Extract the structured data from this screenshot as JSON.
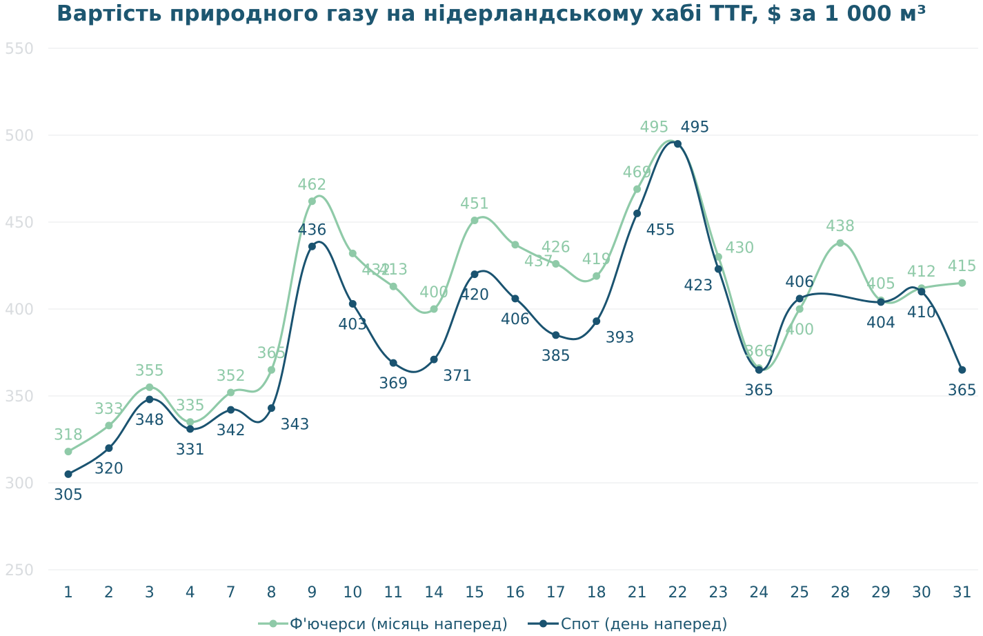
{
  "chart_data": {
    "type": "line",
    "title": "Вартість природного газу на нідерландському хабі TTF, $ за 1 000 м³",
    "xlabel": "",
    "ylabel": "",
    "ylim": [
      250,
      550
    ],
    "yticks": [
      250,
      300,
      350,
      400,
      450,
      500,
      550
    ],
    "grid": true,
    "legend_placement": "bottom-center",
    "categories": [
      "1",
      "2",
      "3",
      "4",
      "7",
      "8",
      "9",
      "10",
      "11",
      "14",
      "15",
      "16",
      "17",
      "18",
      "21",
      "22",
      "23",
      "24",
      "25",
      "28",
      "29",
      "30",
      "31"
    ],
    "series": [
      {
        "name": "Ф'ючерси (місяць наперед)",
        "color": "#8fcaa8",
        "label_color": "#8fcaa8",
        "values": [
          318,
          333,
          355,
          335,
          352,
          365,
          462,
          432,
          413,
          400,
          451,
          437,
          426,
          419,
          469,
          495,
          430,
          366,
          400,
          438,
          405,
          412,
          415
        ]
      },
      {
        "name": "Спот (день наперед)",
        "color": "#1a5370",
        "label_color": "#1a5370",
        "values": [
          305,
          320,
          348,
          331,
          342,
          343,
          436,
          403,
          369,
          371,
          420,
          406,
          385,
          393,
          455,
          495,
          423,
          365,
          406,
          null,
          404,
          410,
          365
        ]
      }
    ]
  }
}
